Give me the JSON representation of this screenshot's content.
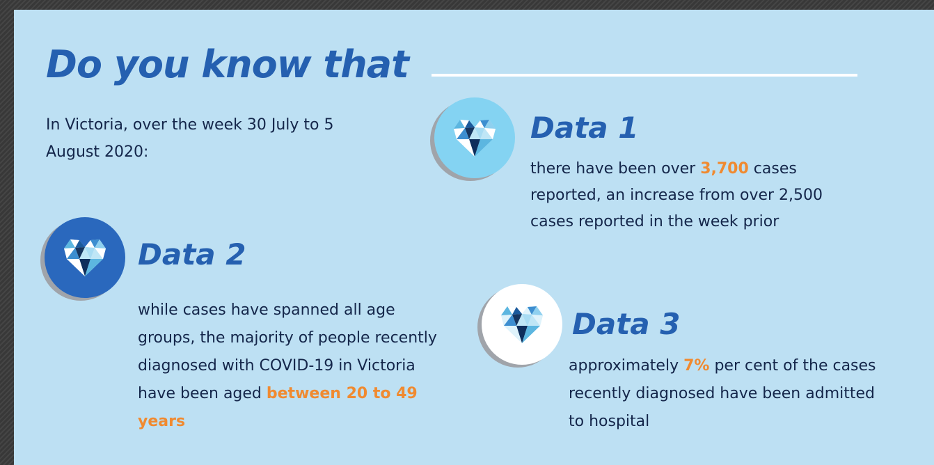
{
  "title": "Do you know that",
  "intro": "In Victoria, over the week 30 July to 5 August 2020:",
  "facts": [
    {
      "heading": "Data 1",
      "text_before": "there have been over ",
      "highlight": "3,700",
      "text_after": " cases reported, an increase from over 2,500 cases reported in the week prior",
      "icon": "heart-icon",
      "badge_color": "#84d3f2"
    },
    {
      "heading": "Data 2",
      "text_before": "while cases have spanned all age groups, the majority of people recently diagnosed with COVID-19 in Victoria have been aged ",
      "highlight": "between 20 to 49 years",
      "text_after": "",
      "icon": "heart-icon",
      "badge_color": "#2a68bd"
    },
    {
      "heading": "Data 3",
      "text_before": "approximately ",
      "highlight": "7%",
      "text_after": " per cent of the cases recently diagnosed have been admitted to hospital",
      "icon": "heart-icon",
      "badge_color": "#ffffff"
    }
  ],
  "colors": {
    "background": "#bde0f3",
    "accent_blue": "#2560b0",
    "highlight_orange": "#f08a30",
    "body_text": "#14264a"
  }
}
